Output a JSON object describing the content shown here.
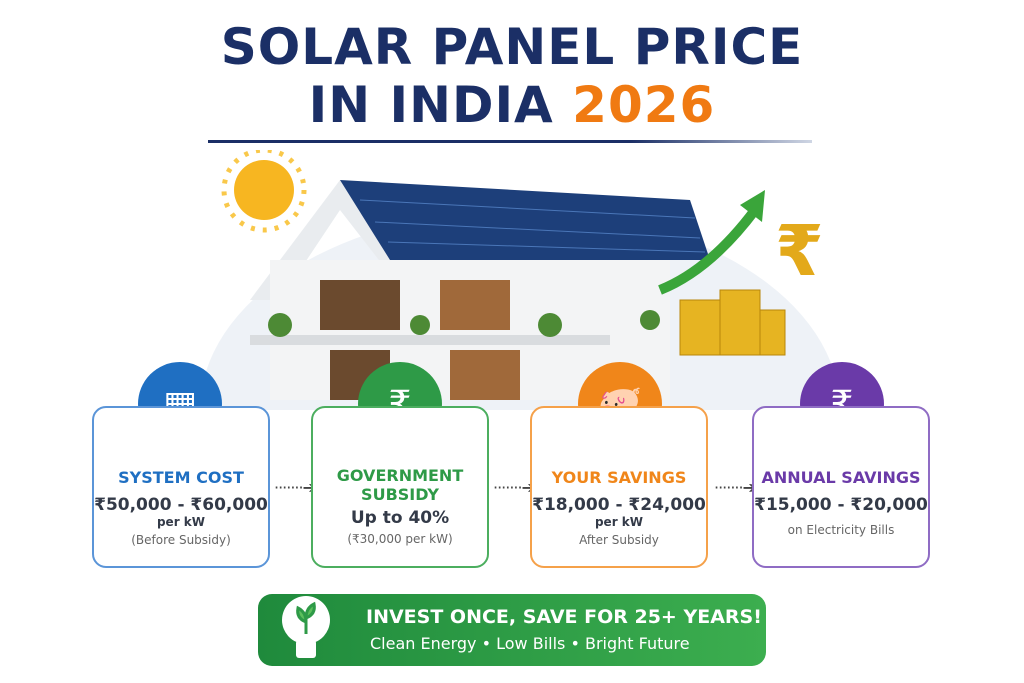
{
  "title": {
    "line1": "SOLAR PANEL PRICE",
    "line2_prefix": "IN INDIA",
    "line2_year": "2026"
  },
  "cards": [
    {
      "heading": "SYSTEM COST",
      "value": "₹50,000 - ₹60,000",
      "unit": "per kW",
      "note": "(Before Subsidy)",
      "color": "#1f6fc2",
      "icon": "solar-panel-icon"
    },
    {
      "heading": "GOVERNMENT SUBSIDY",
      "value": "Up to 40%",
      "unit": "",
      "note": "(₹30,000 per kW)",
      "color": "#2e9a47",
      "icon": "rupee-hand-icon"
    },
    {
      "heading": "YOUR SAVINGS",
      "value": "₹18,000 - ₹24,000",
      "unit": "per kW",
      "note": "After Subsidy",
      "color": "#f0861a",
      "icon": "piggy-bank-icon"
    },
    {
      "heading": "ANNUAL SAVINGS",
      "value": "₹15,000 - ₹20,000",
      "unit": "",
      "note": "on Electricity Bills",
      "color": "#6a3aa8",
      "icon": "money-bag-icon"
    }
  ],
  "banner": {
    "headline": "INVEST ONCE, SAVE FOR 25+ YEARS!",
    "tagline": "Clean Energy • Low Bills • Bright Future"
  },
  "symbols": {
    "rupee": "₹"
  }
}
